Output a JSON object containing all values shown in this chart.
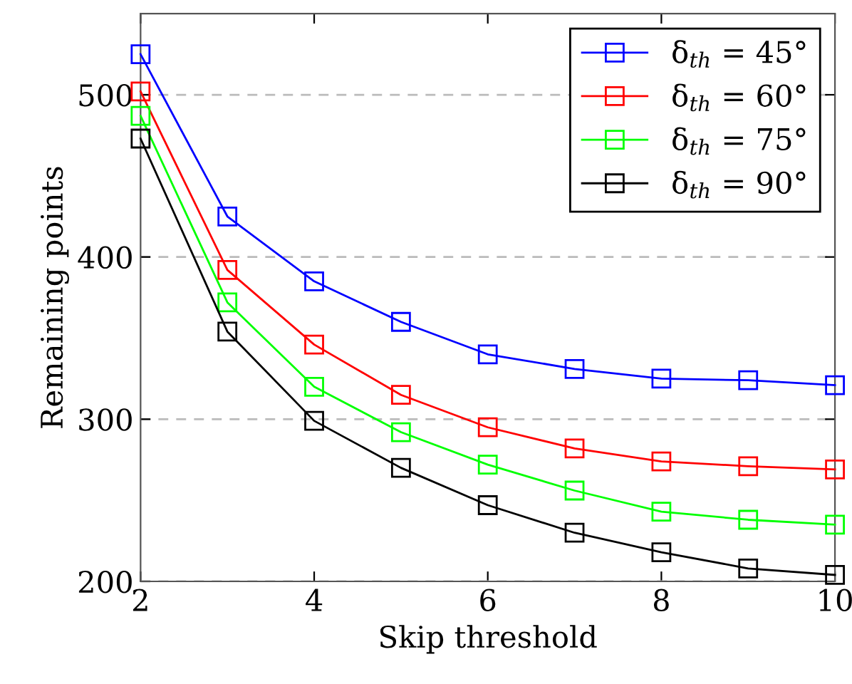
{
  "chart_data": {
    "type": "line",
    "xlabel": "Skip threshold",
    "ylabel": "Remaining points",
    "x": [
      2,
      3,
      4,
      5,
      6,
      7,
      8,
      9,
      10
    ],
    "series": [
      {
        "name": "δ$_{th}$ = 45°",
        "color": "#0000ff",
        "values": [
          525,
          425,
          385,
          360,
          340,
          331,
          325,
          324,
          321
        ]
      },
      {
        "name": "δ$_{th}$ = 60°",
        "color": "#ff0000",
        "values": [
          502,
          392,
          346,
          315,
          295,
          282,
          274,
          271,
          269
        ]
      },
      {
        "name": "δ$_{th}$ = 75°",
        "color": "#00ff00",
        "values": [
          487,
          372,
          320,
          292,
          272,
          256,
          243,
          238,
          235
        ]
      },
      {
        "name": "δ$_{th}$ = 90°",
        "color": "#000000",
        "values": [
          473,
          354,
          299,
          270,
          247,
          230,
          218,
          208,
          204
        ]
      }
    ],
    "xlim": [
      2,
      10
    ],
    "ylim": [
      200,
      550
    ],
    "xticks": [
      2,
      4,
      6,
      8,
      10
    ],
    "yticks": [
      200,
      300,
      400,
      500
    ],
    "grid": "y",
    "legend": "top right",
    "marker": "square",
    "line_style": "solid"
  }
}
